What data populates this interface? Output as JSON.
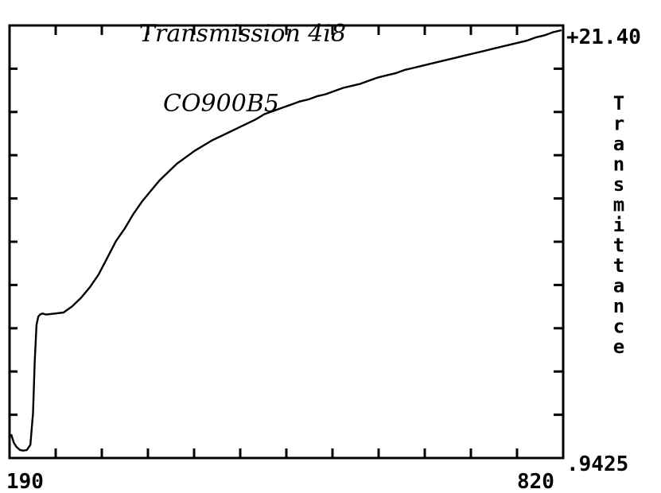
{
  "chart_data": {
    "type": "line",
    "title": "Transmission 4i8",
    "annotation": "CO900B5",
    "xlabel": "",
    "ylabel": "Transmittance",
    "x_tick_labels": [
      "190",
      "820"
    ],
    "y_tick_labels": [
      "+21.40",
      ".9425"
    ],
    "xlim": [
      190,
      820
    ],
    "ylim": [
      0.9425,
      21.4
    ],
    "grid": false,
    "legend": "none",
    "line_color": "#000000",
    "series": [
      {
        "x": [
          190,
          193,
          196,
          200,
          204,
          208,
          212,
          215,
          217,
          219,
          221,
          223,
          226,
          230,
          240,
          250,
          260,
          270,
          280,
          290,
          300,
          310,
          320,
          330,
          340,
          350,
          360,
          370,
          380,
          390,
          400,
          410,
          420,
          430,
          440,
          450,
          460,
          470,
          480,
          490,
          500,
          510,
          520,
          530,
          540,
          550,
          560,
          570,
          580,
          590,
          600,
          610,
          620,
          630,
          640,
          650,
          660,
          670,
          680,
          690,
          700,
          710,
          720,
          730,
          740,
          750,
          760,
          770,
          780,
          790,
          800,
          810,
          820
        ],
        "y": [
          2.0,
          1.6,
          1.4,
          1.25,
          1.22,
          1.25,
          1.5,
          3.0,
          5.5,
          7.2,
          7.6,
          7.7,
          7.75,
          7.7,
          7.75,
          7.8,
          8.1,
          8.5,
          9.0,
          9.6,
          10.4,
          11.2,
          11.8,
          12.5,
          13.1,
          13.6,
          14.1,
          14.5,
          14.9,
          15.2,
          15.5,
          15.75,
          16.0,
          16.2,
          16.4,
          16.6,
          16.8,
          17.0,
          17.25,
          17.4,
          17.55,
          17.7,
          17.85,
          17.95,
          18.1,
          18.2,
          18.35,
          18.5,
          18.6,
          18.7,
          18.85,
          19.0,
          19.1,
          19.2,
          19.35,
          19.45,
          19.55,
          19.65,
          19.75,
          19.85,
          19.95,
          20.05,
          20.15,
          20.25,
          20.35,
          20.45,
          20.55,
          20.65,
          20.75,
          20.9,
          21.0,
          21.15,
          21.25
        ]
      }
    ]
  }
}
